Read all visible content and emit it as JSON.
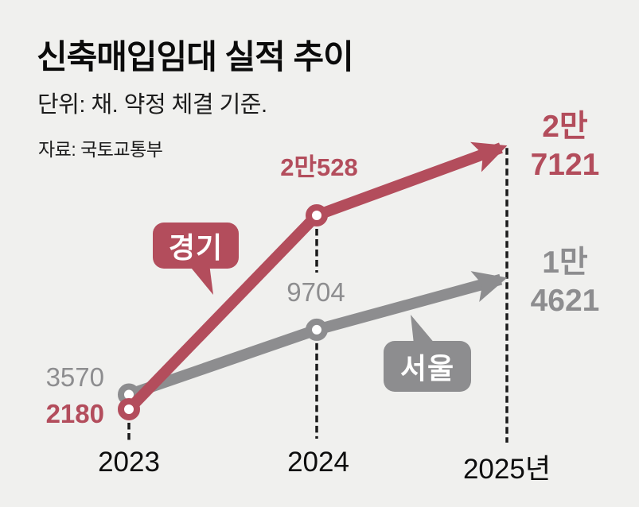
{
  "header": {
    "title": "신축매입임대 실적 추이",
    "unit_note": "단위: 채. 약정 체결 기준.",
    "source": "자료: 국토교통부"
  },
  "colors": {
    "background": "#f0f0ee",
    "gyeonggi_red": "#b34d5c",
    "seoul_gray": "#8d8d8f",
    "axis_text": "#0d0d0d",
    "dashed_line": "#1b1b1b",
    "bubble_text": "#ffffff"
  },
  "chart_data": {
    "type": "line",
    "title": "신축매입임대 실적 추이",
    "unit": "채 (약정 체결 기준)",
    "source": "국토교통부",
    "x": [
      2023,
      2024,
      2025
    ],
    "x_tick_labels": [
      "2023",
      "2024",
      "2025년"
    ],
    "grid": false,
    "legend_position": "inline-bubbles",
    "ylim": [
      0,
      30000
    ],
    "series": [
      {
        "name": "서울",
        "color": "#8d8d8f",
        "values": [
          3570,
          9704,
          14621
        ],
        "labels": {
          "y2023": "3570",
          "y2024": "9704",
          "final_line1": "1만",
          "final_line2": "4621"
        },
        "end_style": "arrow"
      },
      {
        "name": "경기",
        "color": "#b34d5c",
        "values": [
          2180,
          20528,
          27121
        ],
        "labels": {
          "y2023": "2180",
          "y2024": "2만528",
          "final_line1": "2만",
          "final_line2": "7121"
        },
        "end_style": "arrow"
      }
    ]
  }
}
